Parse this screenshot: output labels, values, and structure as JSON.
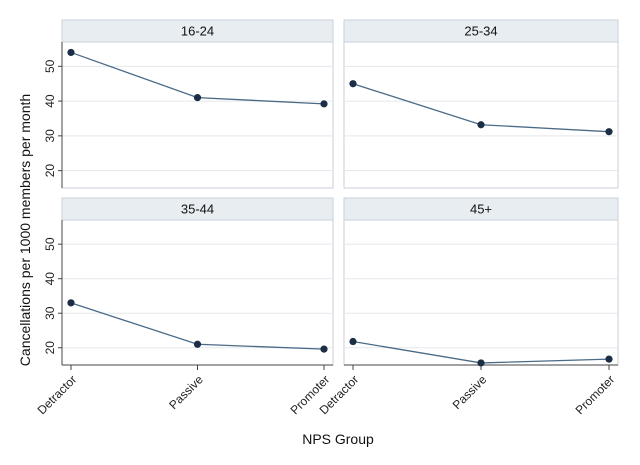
{
  "chart_data": {
    "type": "line",
    "layout": "2x2 facets",
    "xlabel": "NPS Group",
    "ylabel": "Cancellations per 1000 members per month",
    "categories": [
      "Detractor",
      "Passive",
      "Promoter"
    ],
    "yticks": [
      20,
      30,
      40,
      50
    ],
    "ylim": [
      15,
      57
    ],
    "grid": true,
    "line_color": "#4a6a86",
    "marker_color": "#1c2e45",
    "strip_color": "#e8edf2",
    "panels": [
      {
        "title": "16-24",
        "values": [
          54,
          41,
          39.2
        ]
      },
      {
        "title": "25-34",
        "values": [
          45,
          33.2,
          31.2
        ]
      },
      {
        "title": "35-44",
        "values": [
          33,
          21,
          19.6
        ]
      },
      {
        "title": "45+",
        "values": [
          21.8,
          15.6,
          16.7
        ]
      }
    ]
  }
}
